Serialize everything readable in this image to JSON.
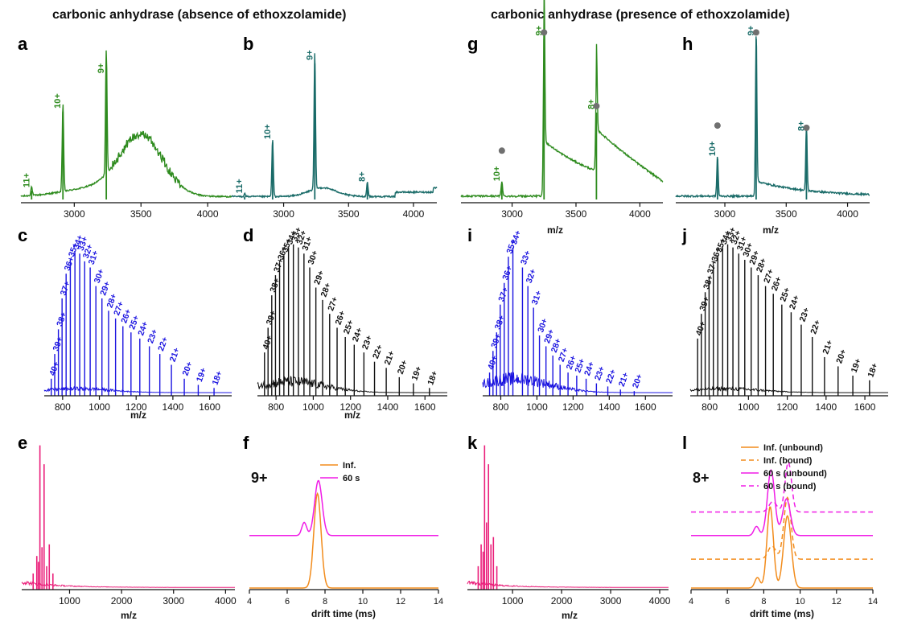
{
  "figure": {
    "left_title": "carbonic anhydrase (absence of ethoxzolamide)",
    "right_title": "carbonic anhydrase (presence of ethoxzolamide)"
  },
  "colors": {
    "green": "#2e8b1e",
    "teal": "#196b68",
    "blue": "#1a13e0",
    "black": "#111111",
    "pink": "#ea1f7a",
    "orange": "#f28c1c",
    "magenta": "#f01de6",
    "dot": "#707070"
  },
  "chart_data": [
    {
      "id": "a",
      "panel_label": "a",
      "type": "line",
      "style": "spectrum",
      "color": "green",
      "xlabel": "",
      "xlim": [
        2600,
        4180
      ],
      "ylim": [
        0,
        1
      ],
      "xticks": [
        3000,
        3500,
        4000
      ],
      "peaks": [
        {
          "x": 2680,
          "y": 0.06,
          "label": "11+"
        },
        {
          "x": 2915,
          "y": 0.6,
          "label": "10+"
        },
        {
          "x": 3240,
          "y": 0.84,
          "label": "9+"
        }
      ],
      "markers": []
    },
    {
      "id": "b",
      "panel_label": "b",
      "type": "line",
      "style": "spectrum",
      "color": "teal",
      "xlabel": "",
      "xlim": [
        2600,
        4180
      ],
      "ylim": [
        0,
        1
      ],
      "xticks": [
        3000,
        3500,
        4000
      ],
      "peaks": [
        {
          "x": 2700,
          "y": 0.02,
          "label": "11+"
        },
        {
          "x": 2915,
          "y": 0.39,
          "label": "10+"
        },
        {
          "x": 3240,
          "y": 0.93,
          "label": "9+"
        },
        {
          "x": 3645,
          "y": 0.1,
          "label": "8+"
        }
      ],
      "markers": []
    },
    {
      "id": "g",
      "panel_label": "g",
      "type": "line",
      "style": "spectrum",
      "color": "green",
      "xlabel": "m/z",
      "xlim": [
        2600,
        4180
      ],
      "ylim": [
        0,
        1
      ],
      "xticks": [
        3000,
        3500,
        4000
      ],
      "peaks": [
        {
          "x": 2920,
          "y": 0.09,
          "label": "10+"
        },
        {
          "x": 3250,
          "y": 0.96,
          "label": "9+"
        },
        {
          "x": 3660,
          "y": 0.52,
          "label": "8+"
        }
      ],
      "markers": [
        2920,
        3250,
        3660
      ]
    },
    {
      "id": "h",
      "panel_label": "h",
      "type": "line",
      "style": "spectrum",
      "color": "teal",
      "xlabel": "m/z",
      "xlim": [
        2600,
        4180
      ],
      "ylim": [
        0,
        1
      ],
      "xticks": [
        3000,
        3500,
        4000
      ],
      "peaks": [
        {
          "x": 2940,
          "y": 0.24,
          "label": "10+"
        },
        {
          "x": 3255,
          "y": 0.96,
          "label": "9+"
        },
        {
          "x": 3665,
          "y": 0.39,
          "label": "8+"
        }
      ],
      "markers": [
        2940,
        3255,
        3665
      ]
    },
    {
      "id": "c",
      "panel_label": "c",
      "type": "bar",
      "style": "comb",
      "color": "blue",
      "xlabel": "m/z",
      "xlim": [
        700,
        1720
      ],
      "ylim": [
        0,
        1
      ],
      "xticks": [
        800,
        1000,
        1200,
        1400,
        1600
      ],
      "peaks": [
        {
          "x": 738,
          "y": 0.1,
          "label": "40+"
        },
        {
          "x": 757,
          "y": 0.26,
          "label": "39+"
        },
        {
          "x": 777,
          "y": 0.42,
          "label": "38+"
        },
        {
          "x": 797,
          "y": 0.62,
          "label": "37+"
        },
        {
          "x": 819,
          "y": 0.78,
          "label": "36+"
        },
        {
          "x": 842,
          "y": 0.87,
          "label": "35+"
        },
        {
          "x": 867,
          "y": 0.92,
          "label": "34+"
        },
        {
          "x": 893,
          "y": 0.91,
          "label": "33+"
        },
        {
          "x": 920,
          "y": 0.86,
          "label": "32+"
        },
        {
          "x": 950,
          "y": 0.82,
          "label": "31+"
        },
        {
          "x": 981,
          "y": 0.7,
          "label": "30+"
        },
        {
          "x": 1014,
          "y": 0.62,
          "label": "29+"
        },
        {
          "x": 1050,
          "y": 0.54,
          "label": "28+"
        },
        {
          "x": 1088,
          "y": 0.49,
          "label": "27+"
        },
        {
          "x": 1128,
          "y": 0.44,
          "label": "26+"
        },
        {
          "x": 1172,
          "y": 0.4,
          "label": "25+"
        },
        {
          "x": 1220,
          "y": 0.36,
          "label": "24+"
        },
        {
          "x": 1272,
          "y": 0.31,
          "label": "23+"
        },
        {
          "x": 1329,
          "y": 0.26,
          "label": "22+"
        },
        {
          "x": 1392,
          "y": 0.19,
          "label": "21+"
        },
        {
          "x": 1462,
          "y": 0.1,
          "label": "20+"
        },
        {
          "x": 1538,
          "y": 0.06,
          "label": "19+"
        },
        {
          "x": 1624,
          "y": 0.04,
          "label": "18+"
        }
      ],
      "markers": []
    },
    {
      "id": "d",
      "panel_label": "d",
      "type": "bar",
      "style": "comb",
      "color": "black",
      "xlabel": "m/z",
      "xlim": [
        700,
        1720
      ],
      "ylim": [
        0,
        1
      ],
      "xticks": [
        800,
        1000,
        1200,
        1400,
        1600
      ],
      "peaks": [
        {
          "x": 738,
          "y": 0.27,
          "label": "40+"
        },
        {
          "x": 757,
          "y": 0.43,
          "label": "39+"
        },
        {
          "x": 777,
          "y": 0.64,
          "label": "38+"
        },
        {
          "x": 797,
          "y": 0.77,
          "label": "37+"
        },
        {
          "x": 819,
          "y": 0.85,
          "label": "36+"
        },
        {
          "x": 842,
          "y": 0.9,
          "label": "35+"
        },
        {
          "x": 867,
          "y": 0.95,
          "label": "34+"
        },
        {
          "x": 893,
          "y": 0.97,
          "label": "33+"
        },
        {
          "x": 920,
          "y": 0.95,
          "label": "32+"
        },
        {
          "x": 950,
          "y": 0.91,
          "label": "31+"
        },
        {
          "x": 981,
          "y": 0.82,
          "label": "30+"
        },
        {
          "x": 1014,
          "y": 0.69,
          "label": "29+"
        },
        {
          "x": 1050,
          "y": 0.61,
          "label": "28+"
        },
        {
          "x": 1088,
          "y": 0.52,
          "label": "27+"
        },
        {
          "x": 1128,
          "y": 0.43,
          "label": "26+"
        },
        {
          "x": 1172,
          "y": 0.37,
          "label": "25+"
        },
        {
          "x": 1220,
          "y": 0.32,
          "label": "24+"
        },
        {
          "x": 1272,
          "y": 0.27,
          "label": "23+"
        },
        {
          "x": 1329,
          "y": 0.21,
          "label": "22+"
        },
        {
          "x": 1392,
          "y": 0.17,
          "label": "21+"
        },
        {
          "x": 1462,
          "y": 0.11,
          "label": "20+"
        },
        {
          "x": 1538,
          "y": 0.07,
          "label": "19+"
        },
        {
          "x": 1624,
          "y": 0.04,
          "label": "18+"
        }
      ],
      "markers": []
    },
    {
      "id": "i",
      "panel_label": "i",
      "type": "bar",
      "style": "comb",
      "color": "blue",
      "xlabel": "m/z",
      "xlim": [
        700,
        1750
      ],
      "ylim": [
        0,
        1
      ],
      "xticks": [
        800,
        1000,
        1200,
        1400,
        1600
      ],
      "peaks": [
        {
          "x": 738,
          "y": 0.14,
          "label": "40+"
        },
        {
          "x": 757,
          "y": 0.28,
          "label": "39+"
        },
        {
          "x": 777,
          "y": 0.4,
          "label": "38+"
        },
        {
          "x": 797,
          "y": 0.58,
          "label": "37+"
        },
        {
          "x": 819,
          "y": 0.72,
          "label": "36+"
        },
        {
          "x": 842,
          "y": 0.89,
          "label": "35+"
        },
        {
          "x": 867,
          "y": 0.95,
          "label": "34+"
        },
        {
          "x": 920,
          "y": 0.82,
          "label": "33+"
        },
        {
          "x": 950,
          "y": 0.7,
          "label": "32+"
        },
        {
          "x": 981,
          "y": 0.56,
          "label": "31+"
        },
        {
          "x": 1014,
          "y": 0.38,
          "label": "30+"
        },
        {
          "x": 1050,
          "y": 0.31,
          "label": "29+"
        },
        {
          "x": 1088,
          "y": 0.25,
          "label": "28+"
        },
        {
          "x": 1128,
          "y": 0.19,
          "label": "27+"
        },
        {
          "x": 1172,
          "y": 0.14,
          "label": "26+"
        },
        {
          "x": 1220,
          "y": 0.12,
          "label": "25+"
        },
        {
          "x": 1272,
          "y": 0.1,
          "label": "24+"
        },
        {
          "x": 1329,
          "y": 0.07,
          "label": "23+"
        },
        {
          "x": 1392,
          "y": 0.05,
          "label": "22+"
        },
        {
          "x": 1462,
          "y": 0.03,
          "label": "21+"
        },
        {
          "x": 1538,
          "y": 0.02,
          "label": "20+"
        }
      ],
      "markers": []
    },
    {
      "id": "j",
      "panel_label": "j",
      "type": "bar",
      "style": "comb",
      "color": "black",
      "xlabel": "",
      "xlim": [
        700,
        1720
      ],
      "ylim": [
        0,
        1
      ],
      "xticks": [
        800,
        1000,
        1200,
        1400,
        1600
      ],
      "peaks": [
        {
          "x": 738,
          "y": 0.36,
          "label": "40+"
        },
        {
          "x": 757,
          "y": 0.52,
          "label": "39+"
        },
        {
          "x": 777,
          "y": 0.66,
          "label": "38+"
        },
        {
          "x": 797,
          "y": 0.76,
          "label": "37+"
        },
        {
          "x": 819,
          "y": 0.84,
          "label": "36+"
        },
        {
          "x": 842,
          "y": 0.9,
          "label": "35+"
        },
        {
          "x": 867,
          "y": 0.95,
          "label": "34+"
        },
        {
          "x": 893,
          "y": 0.97,
          "label": "33+"
        },
        {
          "x": 920,
          "y": 0.95,
          "label": "32+"
        },
        {
          "x": 950,
          "y": 0.91,
          "label": "31+"
        },
        {
          "x": 981,
          "y": 0.87,
          "label": "30+"
        },
        {
          "x": 1014,
          "y": 0.82,
          "label": "29+"
        },
        {
          "x": 1050,
          "y": 0.77,
          "label": "28+"
        },
        {
          "x": 1088,
          "y": 0.7,
          "label": "27+"
        },
        {
          "x": 1128,
          "y": 0.65,
          "label": "26+"
        },
        {
          "x": 1172,
          "y": 0.58,
          "label": "25+"
        },
        {
          "x": 1220,
          "y": 0.53,
          "label": "24+"
        },
        {
          "x": 1272,
          "y": 0.45,
          "label": "23+"
        },
        {
          "x": 1329,
          "y": 0.37,
          "label": "22+"
        },
        {
          "x": 1392,
          "y": 0.24,
          "label": "21+"
        },
        {
          "x": 1462,
          "y": 0.18,
          "label": "20+"
        },
        {
          "x": 1538,
          "y": 0.12,
          "label": "19+"
        },
        {
          "x": 1624,
          "y": 0.09,
          "label": "18+"
        }
      ],
      "markers": []
    },
    {
      "id": "e",
      "panel_label": "e",
      "type": "line",
      "style": "fullscan",
      "color": "pink",
      "xlabel": "m/z",
      "xlim": [
        80,
        4180
      ],
      "ylim": [
        0,
        1
      ],
      "xticks": [
        1000,
        2000,
        3000,
        4000
      ],
      "peaks": [
        {
          "x": 300,
          "y": 0.1
        },
        {
          "x": 370,
          "y": 0.22
        },
        {
          "x": 400,
          "y": 0.18
        },
        {
          "x": 430,
          "y": 0.98
        },
        {
          "x": 470,
          "y": 0.28
        },
        {
          "x": 510,
          "y": 0.85
        },
        {
          "x": 560,
          "y": 0.15
        },
        {
          "x": 610,
          "y": 0.3
        },
        {
          "x": 680,
          "y": 0.1
        }
      ],
      "markers": []
    },
    {
      "id": "k",
      "panel_label": "k",
      "type": "line",
      "style": "fullscan",
      "color": "pink",
      "xlabel": "m/z",
      "xlim": [
        80,
        4180
      ],
      "ylim": [
        0,
        1
      ],
      "xticks": [
        1000,
        2000,
        3000,
        4000
      ],
      "peaks": [
        {
          "x": 300,
          "y": 0.15
        },
        {
          "x": 360,
          "y": 0.3
        },
        {
          "x": 400,
          "y": 0.25
        },
        {
          "x": 430,
          "y": 0.98
        },
        {
          "x": 470,
          "y": 0.45
        },
        {
          "x": 510,
          "y": 0.85
        },
        {
          "x": 560,
          "y": 0.3
        },
        {
          "x": 610,
          "y": 0.35
        },
        {
          "x": 680,
          "y": 0.15
        }
      ],
      "markers": []
    },
    {
      "id": "f",
      "panel_label": "f",
      "type": "line",
      "style": "drift",
      "inset_label": "9+",
      "xlabel": "drift time (ms)",
      "xlim": [
        4,
        14
      ],
      "ylim": [
        0,
        1
      ],
      "xticks": [
        4,
        6,
        8,
        10,
        12,
        14
      ],
      "series": [
        {
          "name": "Inf.",
          "color": "orange",
          "dash": false,
          "offset": 0.0,
          "peaks": [
            {
              "c": 7.6,
              "h": 0.72,
              "w": 0.27
            }
          ]
        },
        {
          "name": "60 s",
          "color": "magenta",
          "dash": false,
          "offset": 0.4,
          "peaks": [
            {
              "c": 6.9,
              "h": 0.1,
              "w": 0.18
            },
            {
              "c": 7.65,
              "h": 0.42,
              "w": 0.28
            }
          ]
        }
      ]
    },
    {
      "id": "l",
      "panel_label": "l",
      "type": "line",
      "style": "drift",
      "inset_label": "8+",
      "xlabel": "drift time (ms)",
      "xlim": [
        4,
        14
      ],
      "ylim": [
        0,
        1
      ],
      "xticks": [
        4,
        6,
        8,
        10,
        12,
        14
      ],
      "series": [
        {
          "name": "Inf. (unbound)",
          "color": "orange",
          "dash": false,
          "offset": 0.0,
          "peaks": [
            {
              "c": 7.65,
              "h": 0.08,
              "w": 0.2
            },
            {
              "c": 8.35,
              "h": 0.62,
              "w": 0.25
            },
            {
              "c": 9.3,
              "h": 0.55,
              "w": 0.3
            }
          ]
        },
        {
          "name": "Inf. (bound)",
          "color": "orange",
          "dash": true,
          "offset": 0.22,
          "peaks": [
            {
              "c": 8.45,
              "h": 0.1,
              "w": 0.3
            },
            {
              "c": 9.3,
              "h": 0.47,
              "w": 0.28
            }
          ]
        },
        {
          "name": "60 s (unbound)",
          "color": "magenta",
          "dash": false,
          "offset": 0.4,
          "peaks": [
            {
              "c": 7.6,
              "h": 0.07,
              "w": 0.2
            },
            {
              "c": 8.4,
              "h": 0.5,
              "w": 0.28
            },
            {
              "c": 9.25,
              "h": 0.28,
              "w": 0.3
            }
          ]
        },
        {
          "name": "60 s (bound)",
          "color": "magenta",
          "dash": true,
          "offset": 0.58,
          "peaks": [
            {
              "c": 8.5,
              "h": 0.08,
              "w": 0.3
            },
            {
              "c": 9.35,
              "h": 0.38,
              "w": 0.25
            }
          ]
        }
      ]
    }
  ]
}
